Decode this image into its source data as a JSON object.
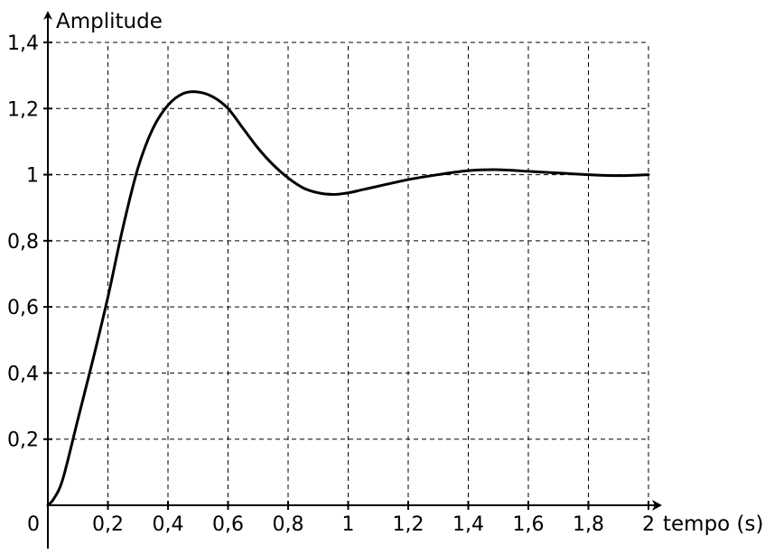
{
  "chart_data": {
    "type": "line",
    "title": "",
    "ylabel": "Amplitude",
    "xlabel": "tempo (s)",
    "xlim": [
      0,
      2
    ],
    "ylim": [
      0,
      1.4
    ],
    "grid": true,
    "grid_style": "dashed",
    "line_color": "#000000",
    "x_ticks": [
      {
        "value": 0,
        "label": "0"
      },
      {
        "value": 0.2,
        "label": "0,2"
      },
      {
        "value": 0.4,
        "label": "0,4"
      },
      {
        "value": 0.6,
        "label": "0,6"
      },
      {
        "value": 0.8,
        "label": "0,8"
      },
      {
        "value": 1,
        "label": "1"
      },
      {
        "value": 1.2,
        "label": "1,2"
      },
      {
        "value": 1.4,
        "label": "1,4"
      },
      {
        "value": 1.6,
        "label": "1,6"
      },
      {
        "value": 1.8,
        "label": "1,8"
      },
      {
        "value": 2,
        "label": "2"
      }
    ],
    "y_ticks": [
      {
        "value": 0.2,
        "label": "0,2"
      },
      {
        "value": 0.4,
        "label": "0,4"
      },
      {
        "value": 0.6,
        "label": "0,6"
      },
      {
        "value": 0.8,
        "label": "0,8"
      },
      {
        "value": 1,
        "label": "1"
      },
      {
        "value": 1.2,
        "label": "1,2"
      },
      {
        "value": 1.4,
        "label": "1,4"
      }
    ],
    "series": [
      {
        "x": [
          0,
          0.02,
          0.05,
          0.1,
          0.15,
          0.2,
          0.25,
          0.3,
          0.35,
          0.4,
          0.45,
          0.5,
          0.55,
          0.6,
          0.65,
          0.7,
          0.75,
          0.8,
          0.85,
          0.9,
          0.95,
          1.0,
          1.05,
          1.1,
          1.2,
          1.3,
          1.4,
          1.5,
          1.6,
          1.7,
          1.8,
          1.9,
          2.0
        ],
        "y": [
          0,
          0.02,
          0.08,
          0.26,
          0.44,
          0.63,
          0.84,
          1.02,
          1.14,
          1.21,
          1.245,
          1.25,
          1.235,
          1.2,
          1.14,
          1.08,
          1.03,
          0.99,
          0.96,
          0.945,
          0.94,
          0.945,
          0.955,
          0.965,
          0.985,
          1.0,
          1.012,
          1.015,
          1.01,
          1.005,
          1.0,
          0.997,
          1.0
        ]
      }
    ]
  }
}
